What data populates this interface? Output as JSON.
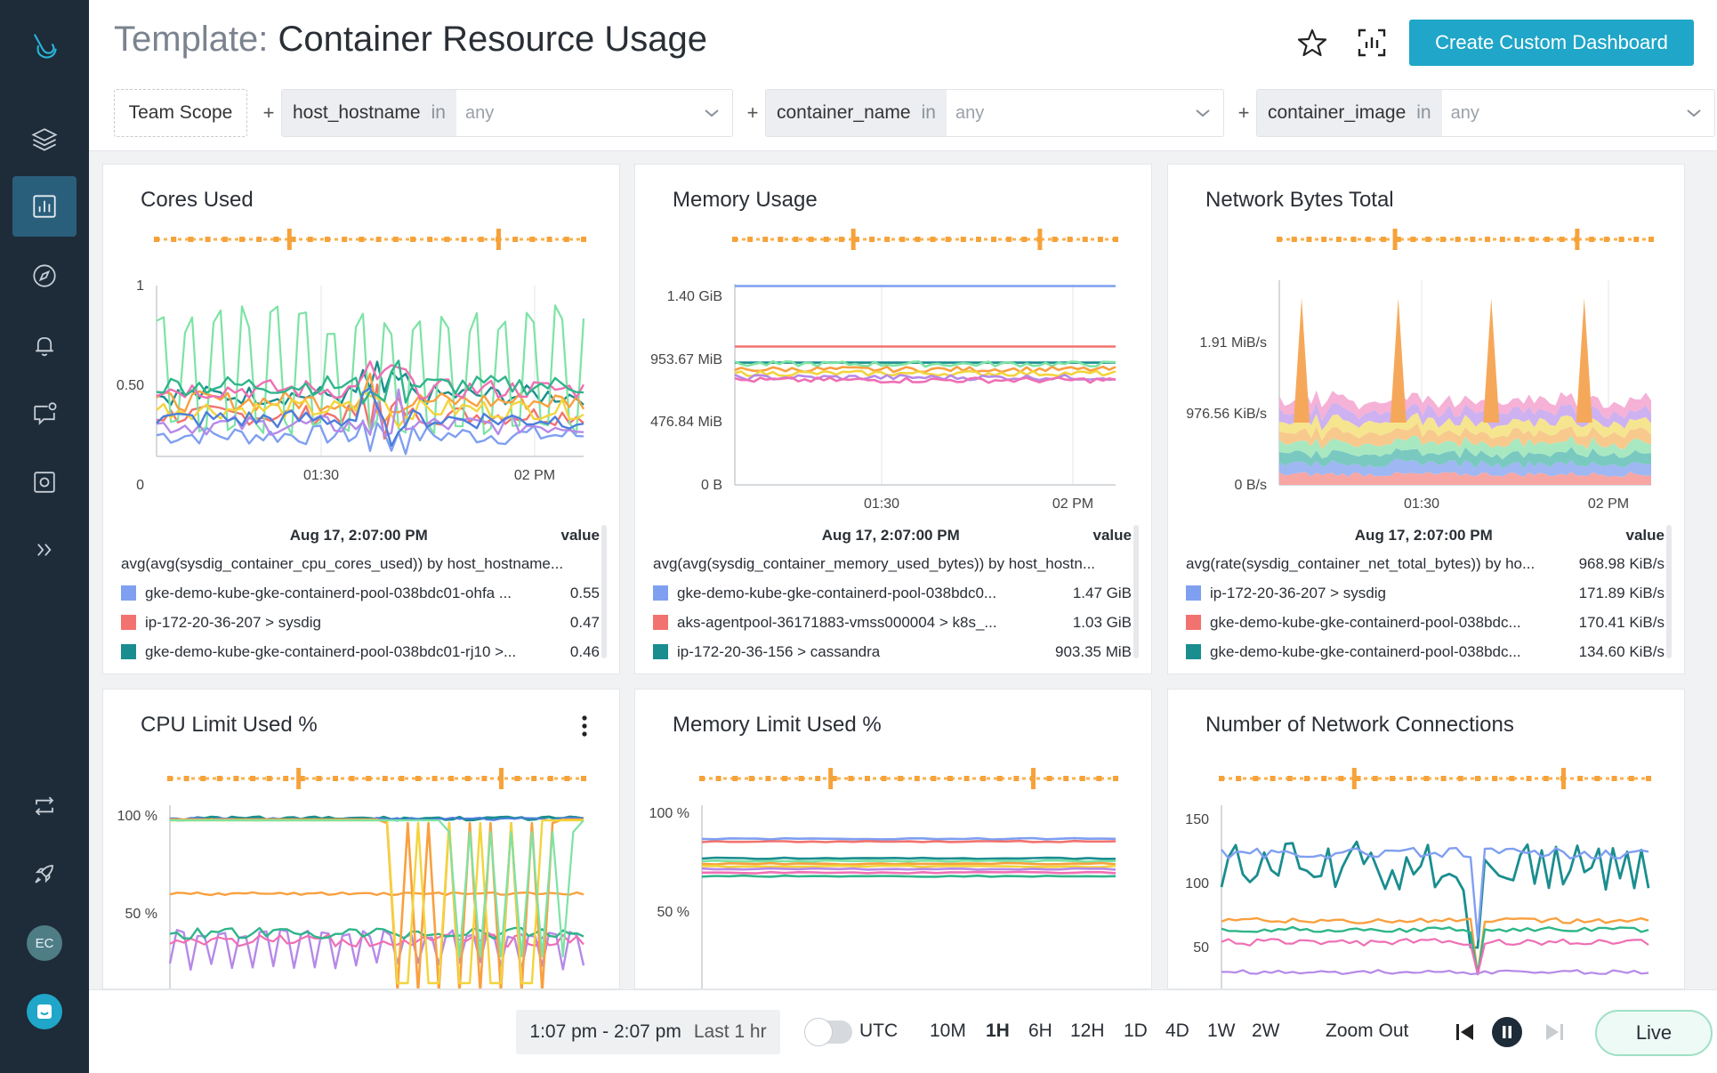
{
  "header": {
    "title_prefix": "Template:",
    "title": "Container Resource Usage",
    "create_button": "Create Custom Dashboard"
  },
  "filters": {
    "team_scope": "Team Scope",
    "plus": "+",
    "items": [
      {
        "key": "host_hostname",
        "op": "in",
        "placeholder": "any"
      },
      {
        "key": "container_name",
        "op": "in",
        "placeholder": "any"
      },
      {
        "key": "container_image",
        "op": "in",
        "placeholder": "any"
      }
    ]
  },
  "colors": {
    "accent": "#1fa6c8",
    "sidebar": "#1e2b38",
    "series": [
      "#7f9ff0",
      "#f2726f",
      "#1a8d8f",
      "#7de3a5",
      "#f9a03f",
      "#f3d43c",
      "#b689e8",
      "#ef6fb4",
      "#2fb58a",
      "#4c7edb"
    ]
  },
  "panels": [
    {
      "title": "Cores Used",
      "y_ticks": [
        "1",
        "0.50",
        "0"
      ],
      "x_ticks": [
        "01:30",
        "02 PM"
      ],
      "legend_time": "Aug 17, 2:07:00 PM",
      "legend_value_header": "value",
      "legend_total": {
        "name": "avg(avg(sysdig_container_cpu_cores_used)) by host_hostname...",
        "value": ""
      },
      "legend": [
        {
          "name": "gke-demo-kube-gke-containerd-pool-038bdc01-ohfa ...",
          "value": "0.55",
          "color": "#7f9ff0"
        },
        {
          "name": "ip-172-20-36-207 > sysdig",
          "value": "0.47",
          "color": "#f2726f"
        },
        {
          "name": "gke-demo-kube-gke-containerd-pool-038bdc01-rj10 >...",
          "value": "0.46",
          "color": "#1a8d8f"
        }
      ]
    },
    {
      "title": "Memory Usage",
      "y_ticks": [
        "1.40 GiB",
        "953.67 MiB",
        "476.84 MiB",
        "0 B"
      ],
      "x_ticks": [
        "01:30",
        "02 PM"
      ],
      "legend_time": "Aug 17, 2:07:00 PM",
      "legend_value_header": "value",
      "legend_total": {
        "name": "avg(avg(sysdig_container_memory_used_bytes)) by host_hostn...",
        "value": ""
      },
      "legend": [
        {
          "name": "gke-demo-kube-gke-containerd-pool-038bdc0...",
          "value": "1.47 GiB",
          "color": "#7f9ff0"
        },
        {
          "name": "aks-agentpool-36171883-vmss000004 > k8s_...",
          "value": "1.03 GiB",
          "color": "#f2726f"
        },
        {
          "name": "ip-172-20-36-156 > cassandra",
          "value": "903.35 MiB",
          "color": "#1a8d8f"
        }
      ]
    },
    {
      "title": "Network Bytes Total",
      "y_ticks": [
        "1.91 MiB/s",
        "976.56 KiB/s",
        "0 B/s"
      ],
      "x_ticks": [
        "01:30",
        "02 PM"
      ],
      "legend_time": "Aug 17, 2:07:00 PM",
      "legend_value_header": "value",
      "legend_total": {
        "name": "avg(rate(sysdig_container_net_total_bytes)) by ho...",
        "value": "968.98 KiB/s"
      },
      "legend": [
        {
          "name": "ip-172-20-36-207 > sysdig",
          "value": "171.89 KiB/s",
          "color": "#7f9ff0"
        },
        {
          "name": "gke-demo-kube-gke-containerd-pool-038bdc...",
          "value": "170.41 KiB/s",
          "color": "#f2726f"
        },
        {
          "name": "gke-demo-kube-gke-containerd-pool-038bdc...",
          "value": "134.60 KiB/s",
          "color": "#1a8d8f"
        }
      ]
    },
    {
      "title": "CPU Limit Used %",
      "y_ticks": [
        "100 %",
        "50 %"
      ],
      "x_ticks": []
    },
    {
      "title": "Memory Limit Used %",
      "y_ticks": [
        "100 %",
        "50 %"
      ],
      "x_ticks": []
    },
    {
      "title": "Number of Network Connections",
      "y_ticks": [
        "150",
        "100",
        "50"
      ],
      "x_ticks": []
    }
  ],
  "footer": {
    "range": "1:07 pm - 2:07 pm",
    "range_label": "Last 1 hr",
    "utc": "UTC",
    "time_presets": [
      "10M",
      "1H",
      "6H",
      "12H",
      "1D",
      "4D",
      "1W",
      "2W"
    ],
    "active_preset": "1H",
    "zoom_out": "Zoom Out",
    "live": "Live"
  },
  "sidebar": {
    "avatar_initials": "EC",
    "icons": [
      "logo-icon",
      "layers-icon",
      "dashboard-icon",
      "explore-icon",
      "alerts-icon",
      "events-icon",
      "capture-icon",
      "expand-icon",
      "integrations-icon",
      "rocket-icon"
    ]
  }
}
